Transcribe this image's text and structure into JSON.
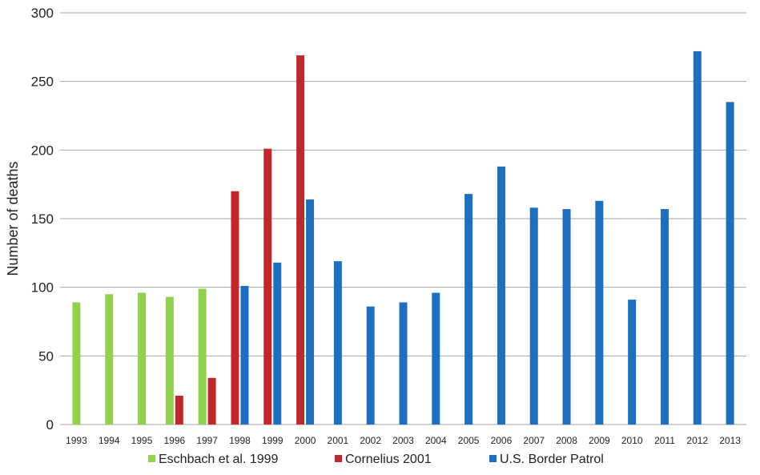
{
  "chart_data": {
    "type": "bar",
    "title": "",
    "xlabel": "",
    "ylabel": "Number of deaths",
    "ylim": [
      0,
      300
    ],
    "yticks": [
      0,
      50,
      100,
      150,
      200,
      250,
      300
    ],
    "grid": "horizontal",
    "legend_position": "bottom",
    "categories": [
      "1993",
      "1994",
      "1995",
      "1996",
      "1997",
      "1998",
      "1999",
      "2000",
      "2001",
      "2002",
      "2003",
      "2004",
      "2005",
      "2006",
      "2007",
      "2008",
      "2009",
      "2010",
      "2011",
      "2012",
      "2013"
    ],
    "series": [
      {
        "name": "Eschbach et al. 1999",
        "color": "#92d050",
        "values": [
          89,
          95,
          96,
          93,
          99,
          null,
          null,
          null,
          null,
          null,
          null,
          null,
          null,
          null,
          null,
          null,
          null,
          null,
          null,
          null,
          null
        ]
      },
      {
        "name": "Cornelius 2001",
        "color": "#c0282d",
        "values": [
          null,
          null,
          null,
          21,
          34,
          170,
          201,
          269,
          null,
          null,
          null,
          null,
          null,
          null,
          null,
          null,
          null,
          null,
          null,
          null,
          null
        ]
      },
      {
        "name": "U.S. Border Patrol",
        "color": "#1f6fbf",
        "values": [
          null,
          null,
          null,
          null,
          null,
          101,
          118,
          164,
          119,
          86,
          89,
          96,
          168,
          188,
          158,
          157,
          163,
          91,
          157,
          272,
          235
        ]
      }
    ]
  }
}
